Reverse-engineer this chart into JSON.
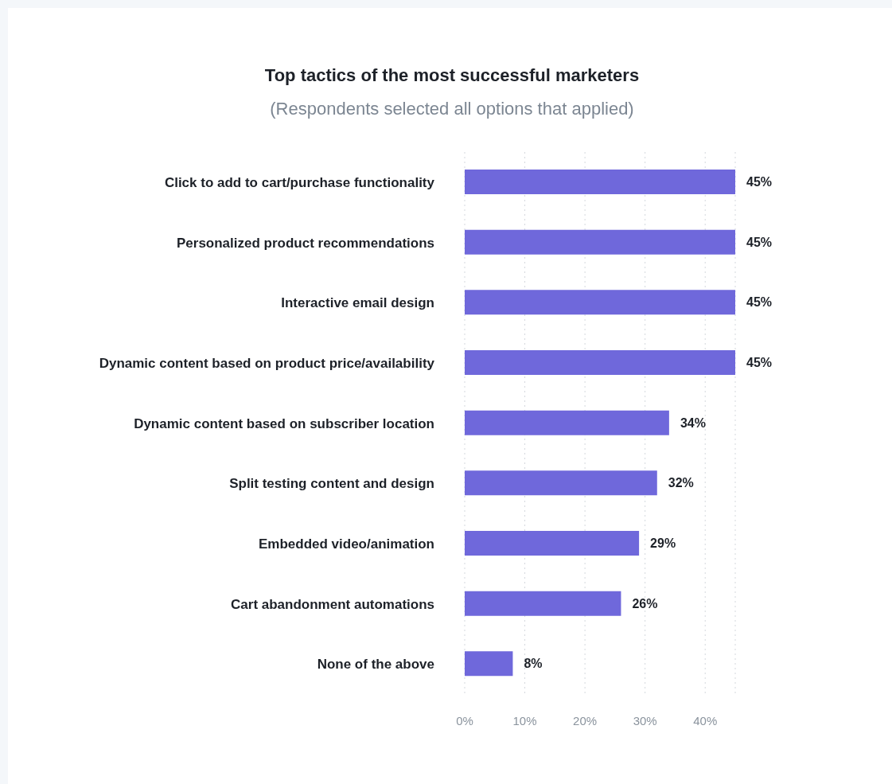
{
  "chart_data": {
    "type": "bar",
    "orientation": "horizontal",
    "title": "Top tactics of the most successful marketers",
    "subtitle": "(Respondents selected all options that applied)",
    "categories": [
      "Click to add to cart/purchase functionality",
      "Personalized product recommendations",
      "Interactive email design",
      "Dynamic content based on product price/availability",
      "Dynamic content based on subscriber location",
      "Split testing content and design",
      "Embedded video/animation",
      "Cart abandonment automations",
      "None of the above"
    ],
    "values": [
      45,
      45,
      45,
      45,
      34,
      32,
      29,
      26,
      8
    ],
    "value_labels": [
      "45%",
      "45%",
      "45%",
      "45%",
      "34%",
      "32%",
      "29%",
      "26%",
      "8%"
    ],
    "color": "#6f68db",
    "xlim": [
      0,
      45
    ],
    "xticks": [
      {
        "value": 0,
        "label": "0%"
      },
      {
        "value": 10,
        "label": "10%"
      },
      {
        "value": 20,
        "label": "20%"
      },
      {
        "value": 30,
        "label": "30%"
      },
      {
        "value": 40,
        "label": "40%"
      }
    ],
    "grid": "x"
  }
}
